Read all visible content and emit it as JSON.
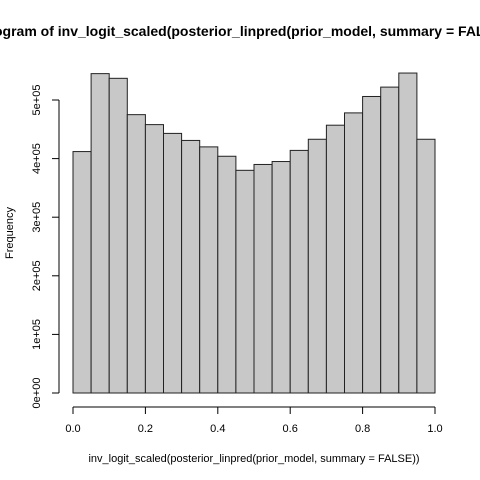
{
  "chart_data": {
    "type": "bar",
    "title": "Histogram of inv_logit_scaled(posterior_linpred(prior_model, summary = FALSE))",
    "xlabel": "inv_logit_scaled(posterior_linpred(prior_model, summary = FALSE))",
    "ylabel": "Frequency",
    "bin_width": 0.05,
    "bin_starts": [
      0.0,
      0.05,
      0.1,
      0.15,
      0.2,
      0.25,
      0.3,
      0.35,
      0.4,
      0.45,
      0.5,
      0.55,
      0.6,
      0.65,
      0.7,
      0.75,
      0.8,
      0.85,
      0.9,
      0.95
    ],
    "values": [
      412000,
      545000,
      537000,
      475000,
      458000,
      443000,
      431000,
      420000,
      404000,
      380000,
      390000,
      395000,
      414000,
      433000,
      457000,
      478000,
      506000,
      522000,
      546000,
      433000
    ],
    "xlim": [
      0,
      1
    ],
    "ylim": [
      0,
      500000
    ],
    "x_ticks": [
      0.0,
      0.2,
      0.4,
      0.6,
      0.8,
      1.0
    ],
    "x_tick_labels": [
      "0.0",
      "0.2",
      "0.4",
      "0.6",
      "0.8",
      "1.0"
    ],
    "y_ticks": [
      0,
      100000,
      200000,
      300000,
      400000,
      500000
    ],
    "y_tick_labels": [
      "0e+00",
      "1e+05",
      "2e+05",
      "3e+05",
      "4e+05",
      "5e+05"
    ],
    "bar_color": "#c8c8c8",
    "grid": false
  }
}
